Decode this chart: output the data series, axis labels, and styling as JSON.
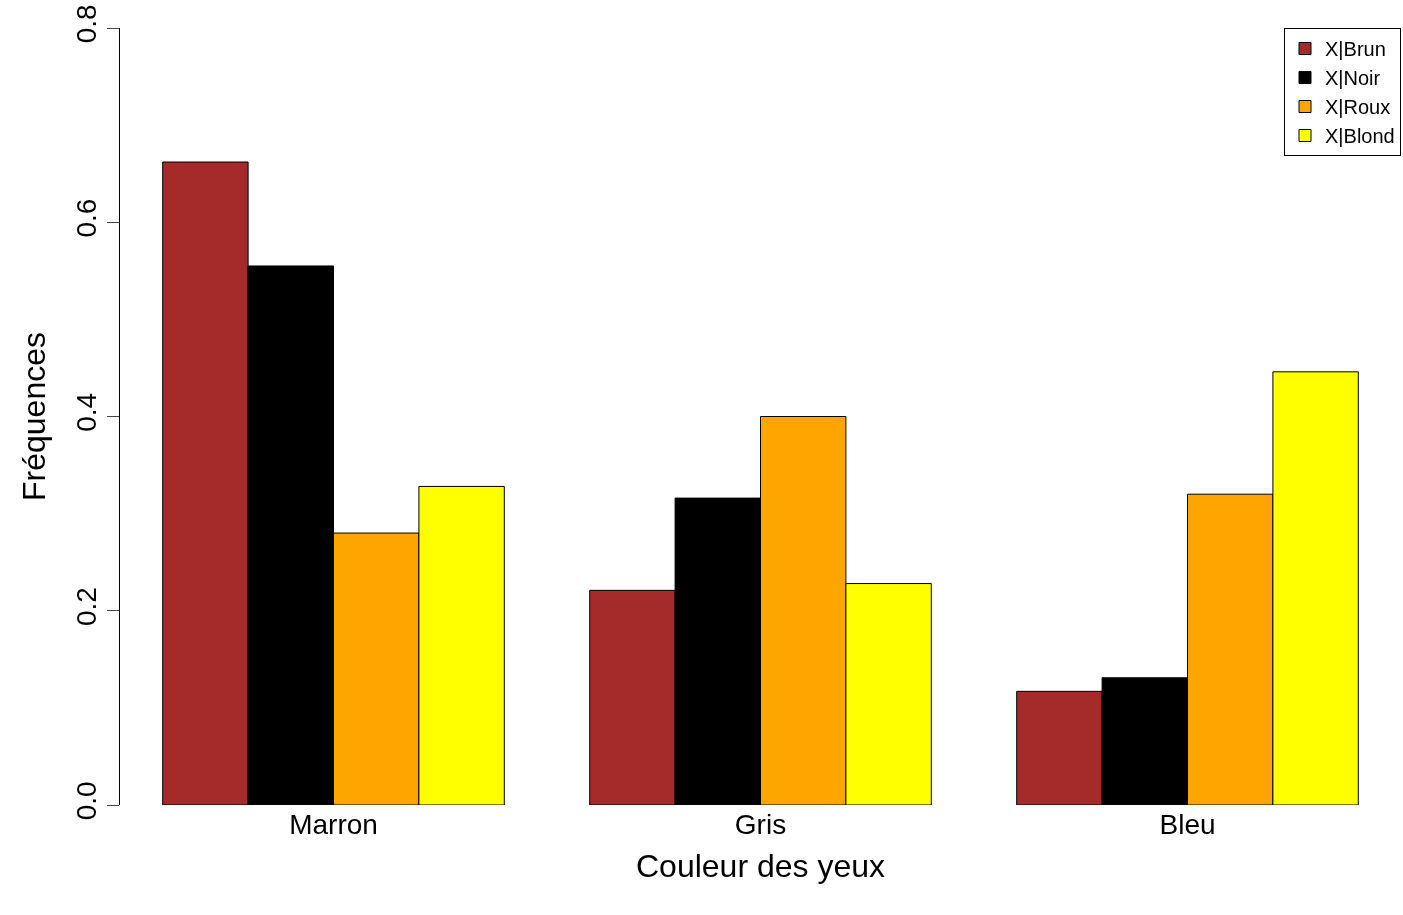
{
  "chart_data": {
    "type": "bar",
    "xlabel": "Couleur des yeux",
    "ylabel": "Fréquences",
    "categories": [
      "Marron",
      "Gris",
      "Bleu"
    ],
    "series": [
      {
        "name": "X|Brun",
        "color": "#a52a2a",
        "values": [
          0.662,
          0.221,
          0.117
        ]
      },
      {
        "name": "X|Noir",
        "color": "#000000",
        "values": [
          0.555,
          0.316,
          0.131
        ]
      },
      {
        "name": "X|Roux",
        "color": "#ffa500",
        "values": [
          0.28,
          0.4,
          0.32
        ]
      },
      {
        "name": "X|Blond",
        "color": "#ffff00",
        "values": [
          0.328,
          0.228,
          0.446
        ]
      }
    ],
    "ylim": [
      0,
      0.8
    ],
    "yticks": [
      {
        "value": 0,
        "label": "0.0"
      },
      0.2,
      0.4,
      0.6,
      0.8
    ],
    "grid": false,
    "legend": "top right"
  }
}
